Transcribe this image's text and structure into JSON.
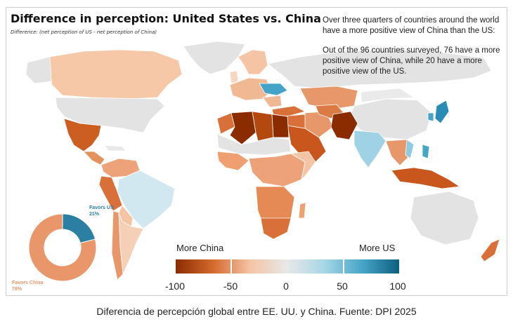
{
  "title": "Difference in perception: United States vs. China",
  "subtitle": "Difference: (net perception of US - net perception of China)",
  "note": {
    "p1": "Over three quarters of countries around the world have a more positive view of China than the US:",
    "p2": "Out of the 96 countries surveyed, 76 have a more positive view of China, while 20 have a more positive view of the US."
  },
  "legend": {
    "left_label": "More China",
    "right_label": "More US",
    "ticks": [
      "-100",
      "-50",
      "0",
      "50",
      "100"
    ],
    "colors": [
      "#8a2b00",
      "#d46a2d",
      "#f4c4a4",
      "#e8e8e8",
      "#a6d6e6",
      "#47a6c8",
      "#0d5f80"
    ]
  },
  "donut": {
    "us_label": "Favors US",
    "us_pct_text": "21%",
    "us_value": 21,
    "china_label": "Favors China",
    "china_pct_text": "79%",
    "china_value": 79,
    "us_color": "#2a7fa3",
    "china_color": "#e9976a"
  },
  "caption": "Diferencia de percepción global entre EE. UU. y China. Fuente: DPI 2025"
}
